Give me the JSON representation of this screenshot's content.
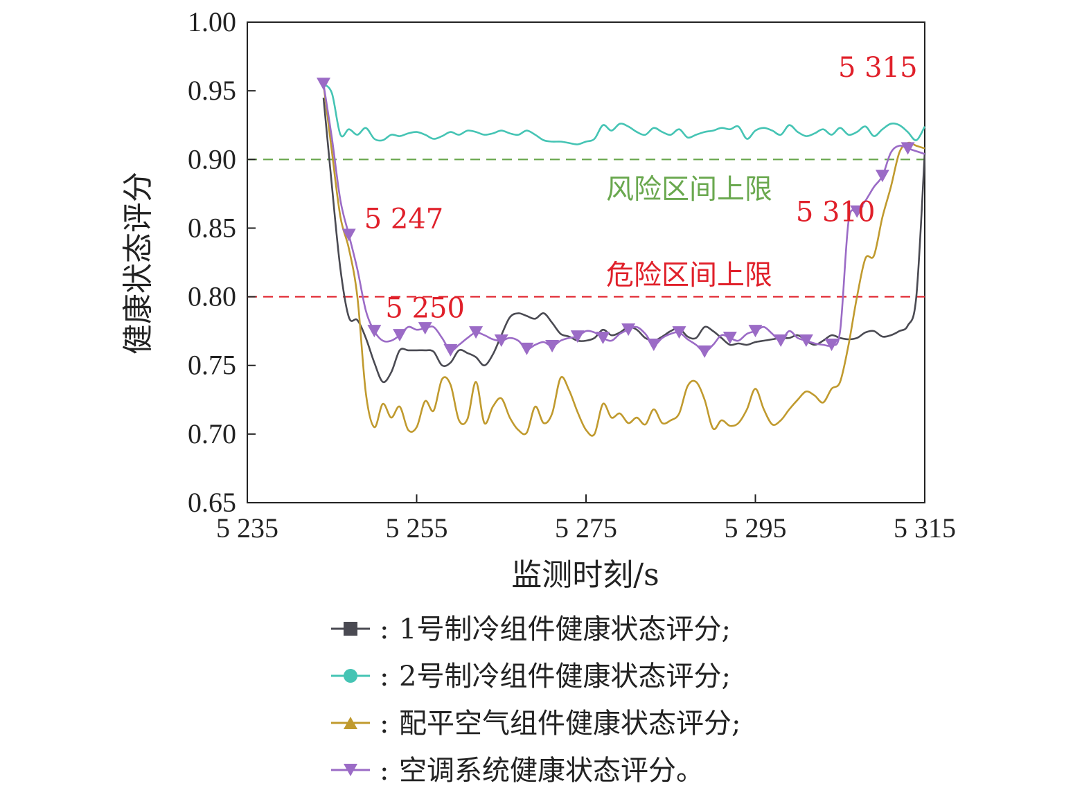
{
  "chart_data": {
    "type": "line",
    "xlabel": "监测时刻/s",
    "ylabel": "健康状态评分",
    "xlim": [
      5235,
      5315
    ],
    "ylim": [
      0.65,
      1.0
    ],
    "xticks": [
      5235,
      5255,
      5275,
      5295,
      5315
    ],
    "xtick_labels": [
      "5 235",
      "5 255",
      "5 275",
      "5 295",
      "5 315"
    ],
    "yticks": [
      0.65,
      0.7,
      0.75,
      0.8,
      0.85,
      0.9,
      0.95,
      1.0
    ],
    "ytick_labels": [
      "0.65",
      "0.70",
      "0.75",
      "0.80",
      "0.85",
      "0.90",
      "0.95",
      "1.00"
    ],
    "grid": false,
    "legend_position": "bottom",
    "thresholds": [
      {
        "label": "风险区间上限",
        "y": 0.9,
        "color": "#6aa84f"
      },
      {
        "label": "危险区间上限",
        "y": 0.8,
        "color": "#e0202a"
      }
    ],
    "annotations": [
      {
        "text": "5 247",
        "x": 5247,
        "y": 0.85,
        "color": "#e0202a"
      },
      {
        "text": "5 250",
        "x": 5250,
        "y": 0.79,
        "color": "#e0202a"
      },
      {
        "text": "5 310",
        "x": 5310,
        "y": 0.855,
        "color": "#e0202a"
      },
      {
        "text": "5 315",
        "x": 5315,
        "y": 0.93,
        "color": "#e0202a"
      }
    ],
    "series": [
      {
        "name": "1号制冷组件健康状态评分;",
        "legend_prefix": ":",
        "color": "#4a4a52",
        "marker": "square",
        "show_markers": false,
        "x": [
          5244,
          5245,
          5246,
          5247,
          5248,
          5249,
          5250,
          5251,
          5252,
          5253,
          5254,
          5255,
          5256,
          5257,
          5258,
          5259,
          5260,
          5261,
          5262,
          5263,
          5264,
          5265,
          5266,
          5267,
          5268,
          5269,
          5270,
          5271,
          5272,
          5273,
          5274,
          5275,
          5276,
          5277,
          5278,
          5279,
          5280,
          5281,
          5282,
          5283,
          5284,
          5285,
          5286,
          5287,
          5288,
          5289,
          5290,
          5291,
          5292,
          5293,
          5294,
          5295,
          5296,
          5297,
          5298,
          5299,
          5300,
          5301,
          5302,
          5303,
          5304,
          5305,
          5306,
          5307,
          5308,
          5309,
          5310,
          5311,
          5312,
          5313,
          5314,
          5315
        ],
        "y": [
          0.945,
          0.88,
          0.82,
          0.785,
          0.783,
          0.77,
          0.752,
          0.738,
          0.745,
          0.761,
          0.761,
          0.761,
          0.761,
          0.76,
          0.75,
          0.752,
          0.761,
          0.759,
          0.756,
          0.75,
          0.758,
          0.772,
          0.785,
          0.788,
          0.786,
          0.784,
          0.788,
          0.781,
          0.773,
          0.771,
          0.768,
          0.768,
          0.77,
          0.776,
          0.772,
          0.774,
          0.778,
          0.776,
          0.77,
          0.768,
          0.771,
          0.775,
          0.777,
          0.771,
          0.77,
          0.778,
          0.775,
          0.77,
          0.765,
          0.766,
          0.765,
          0.767,
          0.768,
          0.769,
          0.77,
          0.77,
          0.772,
          0.768,
          0.765,
          0.768,
          0.772,
          0.77,
          0.769,
          0.77,
          0.774,
          0.775,
          0.771,
          0.772,
          0.775,
          0.779,
          0.8,
          0.905
        ]
      },
      {
        "name": "2号制冷组件健康状态评分;",
        "legend_prefix": ":",
        "color": "#45c4b4",
        "marker": "circle",
        "show_markers": false,
        "x": [
          5244,
          5245,
          5246,
          5247,
          5248,
          5249,
          5250,
          5251,
          5252,
          5253,
          5254,
          5255,
          5256,
          5257,
          5258,
          5259,
          5260,
          5261,
          5262,
          5263,
          5264,
          5265,
          5266,
          5267,
          5268,
          5269,
          5270,
          5271,
          5272,
          5273,
          5274,
          5275,
          5276,
          5277,
          5278,
          5279,
          5280,
          5281,
          5282,
          5283,
          5284,
          5285,
          5286,
          5287,
          5288,
          5289,
          5290,
          5291,
          5292,
          5293,
          5294,
          5295,
          5296,
          5297,
          5298,
          5299,
          5300,
          5301,
          5302,
          5303,
          5304,
          5305,
          5306,
          5307,
          5308,
          5309,
          5310,
          5311,
          5312,
          5313,
          5314,
          5315
        ],
        "y": [
          0.955,
          0.948,
          0.918,
          0.922,
          0.918,
          0.923,
          0.915,
          0.914,
          0.918,
          0.917,
          0.919,
          0.92,
          0.918,
          0.915,
          0.917,
          0.92,
          0.918,
          0.921,
          0.92,
          0.918,
          0.919,
          0.921,
          0.919,
          0.918,
          0.921,
          0.918,
          0.914,
          0.913,
          0.913,
          0.912,
          0.911,
          0.913,
          0.915,
          0.925,
          0.921,
          0.926,
          0.924,
          0.92,
          0.918,
          0.923,
          0.92,
          0.918,
          0.922,
          0.916,
          0.918,
          0.92,
          0.921,
          0.923,
          0.922,
          0.924,
          0.915,
          0.921,
          0.923,
          0.921,
          0.918,
          0.925,
          0.92,
          0.917,
          0.919,
          0.922,
          0.918,
          0.923,
          0.918,
          0.92,
          0.924,
          0.917,
          0.922,
          0.926,
          0.925,
          0.92,
          0.914,
          0.924
        ]
      },
      {
        "name": "配平空气组件健康状态评分;",
        "legend_prefix": ":",
        "color": "#c09a2e",
        "marker": "triangle-up",
        "show_markers": false,
        "x": [
          5244,
          5245,
          5246,
          5247,
          5248,
          5249,
          5250,
          5251,
          5252,
          5253,
          5254,
          5255,
          5256,
          5257,
          5258,
          5259,
          5260,
          5261,
          5262,
          5263,
          5264,
          5265,
          5266,
          5267,
          5268,
          5269,
          5270,
          5271,
          5272,
          5273,
          5274,
          5275,
          5276,
          5277,
          5278,
          5279,
          5280,
          5281,
          5282,
          5283,
          5284,
          5285,
          5286,
          5287,
          5288,
          5289,
          5290,
          5291,
          5292,
          5293,
          5294,
          5295,
          5296,
          5297,
          5298,
          5299,
          5300,
          5301,
          5302,
          5303,
          5304,
          5305,
          5306,
          5307,
          5308,
          5309,
          5310,
          5311,
          5312,
          5313,
          5314,
          5315
        ],
        "y": [
          0.955,
          0.905,
          0.858,
          0.835,
          0.8,
          0.73,
          0.705,
          0.722,
          0.712,
          0.72,
          0.703,
          0.705,
          0.724,
          0.717,
          0.74,
          0.736,
          0.71,
          0.711,
          0.738,
          0.708,
          0.72,
          0.726,
          0.712,
          0.703,
          0.701,
          0.72,
          0.708,
          0.715,
          0.741,
          0.732,
          0.716,
          0.703,
          0.7,
          0.722,
          0.712,
          0.715,
          0.708,
          0.712,
          0.707,
          0.718,
          0.708,
          0.71,
          0.715,
          0.735,
          0.738,
          0.725,
          0.704,
          0.71,
          0.706,
          0.708,
          0.718,
          0.733,
          0.718,
          0.707,
          0.71,
          0.718,
          0.725,
          0.731,
          0.728,
          0.723,
          0.733,
          0.738,
          0.765,
          0.8,
          0.828,
          0.83,
          0.858,
          0.88,
          0.905,
          0.912,
          0.91,
          0.908
        ]
      },
      {
        "name": "空调系统健康状态评分。",
        "legend_prefix": ":",
        "color": "#9b6bc6",
        "marker": "triangle-down",
        "show_markers": true,
        "x": [
          5244,
          5245,
          5246,
          5247,
          5248,
          5249,
          5250,
          5251,
          5252,
          5253,
          5254,
          5255,
          5256,
          5257,
          5258,
          5259,
          5260,
          5261,
          5262,
          5263,
          5264,
          5265,
          5266,
          5267,
          5268,
          5269,
          5270,
          5271,
          5272,
          5273,
          5274,
          5275,
          5276,
          5277,
          5278,
          5279,
          5280,
          5281,
          5282,
          5283,
          5284,
          5285,
          5286,
          5287,
          5288,
          5289,
          5290,
          5291,
          5292,
          5293,
          5294,
          5295,
          5296,
          5297,
          5298,
          5299,
          5300,
          5301,
          5302,
          5303,
          5304,
          5305,
          5306,
          5307,
          5308,
          5309,
          5310,
          5311,
          5312,
          5313,
          5314,
          5315
        ],
        "y": [
          0.955,
          0.915,
          0.87,
          0.845,
          0.82,
          0.79,
          0.775,
          0.768,
          0.768,
          0.772,
          0.778,
          0.776,
          0.777,
          0.778,
          0.77,
          0.761,
          0.765,
          0.77,
          0.774,
          0.772,
          0.769,
          0.768,
          0.77,
          0.768,
          0.762,
          0.765,
          0.767,
          0.764,
          0.768,
          0.77,
          0.771,
          0.775,
          0.774,
          0.77,
          0.768,
          0.773,
          0.776,
          0.778,
          0.773,
          0.765,
          0.77,
          0.773,
          0.774,
          0.769,
          0.765,
          0.76,
          0.765,
          0.772,
          0.77,
          0.768,
          0.773,
          0.775,
          0.778,
          0.773,
          0.768,
          0.775,
          0.77,
          0.768,
          0.766,
          0.765,
          0.765,
          0.775,
          0.855,
          0.862,
          0.87,
          0.88,
          0.888,
          0.905,
          0.91,
          0.908,
          0.906,
          0.904
        ]
      }
    ]
  }
}
